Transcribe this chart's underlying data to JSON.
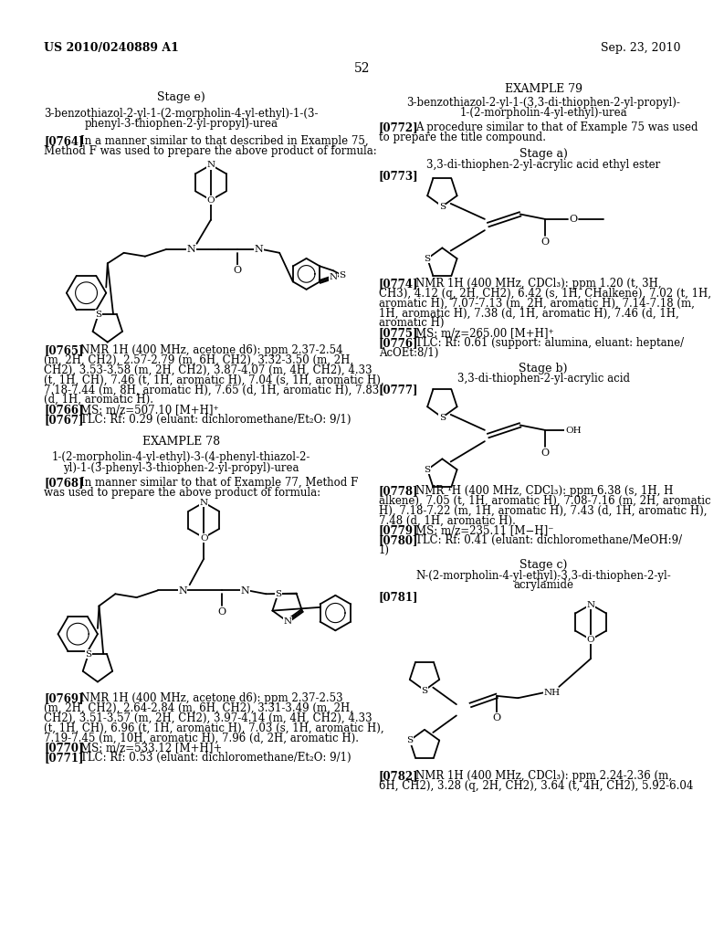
{
  "background_color": "#ffffff",
  "page_number": "52",
  "header_left": "US 2010/0240889 A1",
  "header_right": "Sep. 23, 2010"
}
